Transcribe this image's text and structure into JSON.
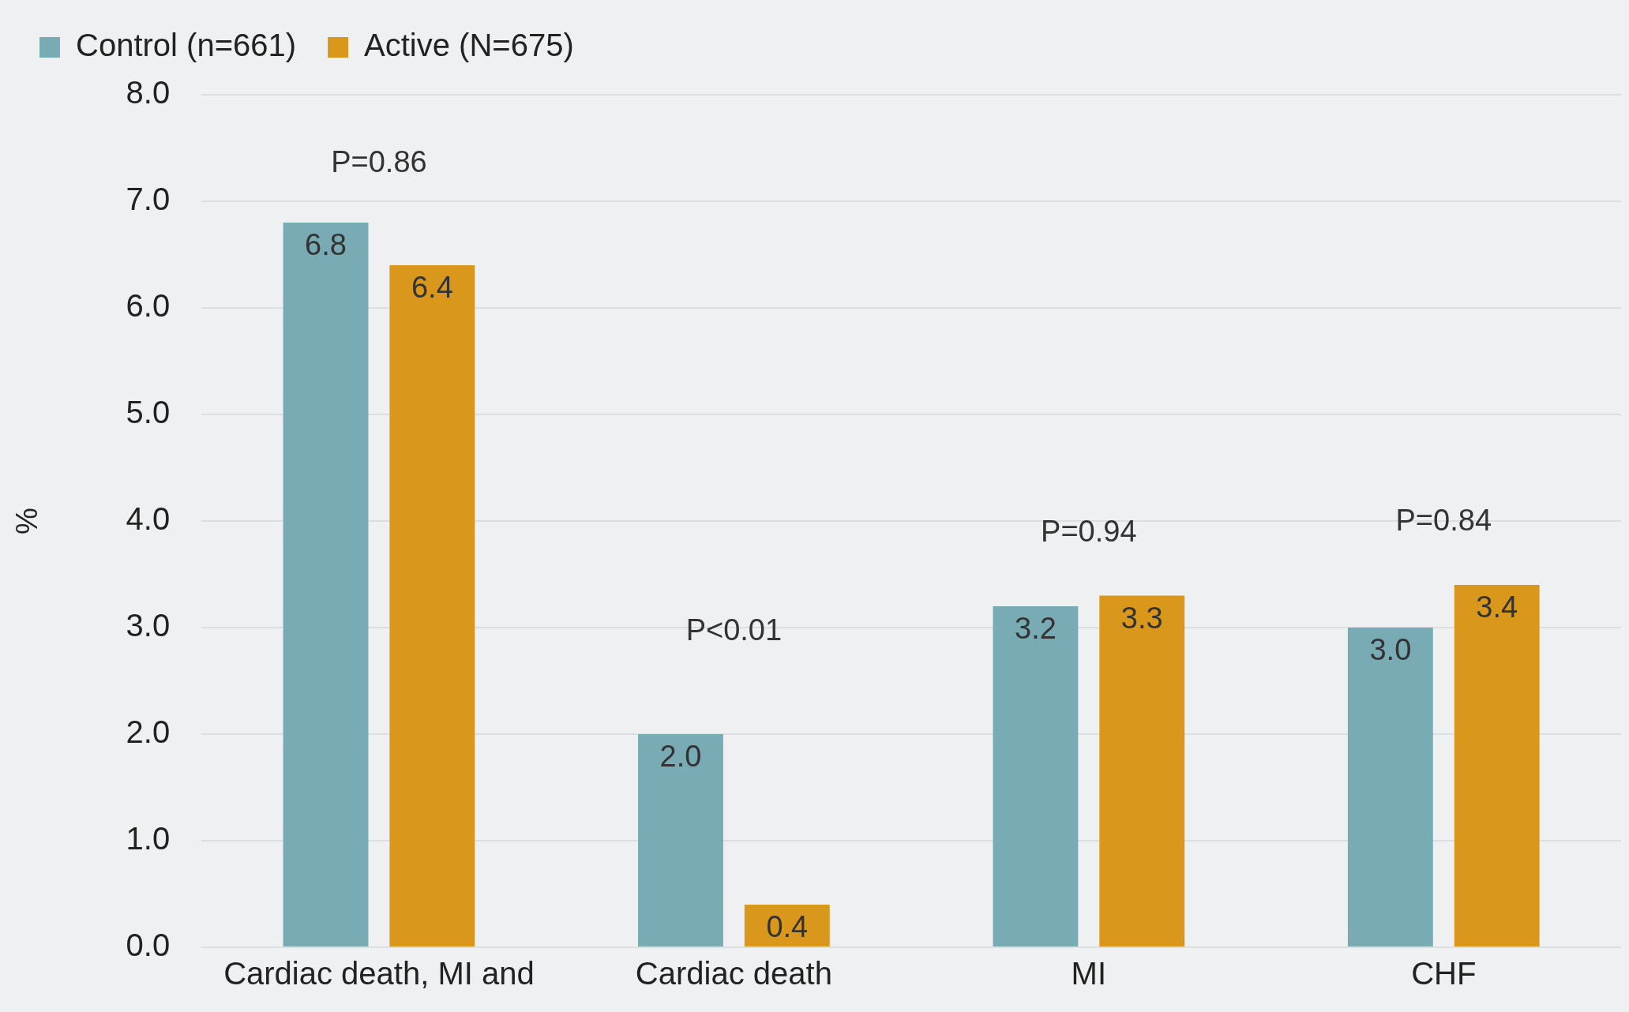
{
  "chart_data": {
    "type": "bar",
    "ylabel": "%",
    "categories": [
      "Cardiac death, MI and",
      "Cardiac death",
      "MI",
      "CHF"
    ],
    "series": [
      {
        "name": "Control (n=661)",
        "color": "#78abb4",
        "values": [
          6.8,
          2.0,
          3.2,
          3.0
        ],
        "value_labels": [
          "6.8",
          "2.0",
          "3.2",
          "3.0"
        ]
      },
      {
        "name": "Active (N=675)",
        "color": "#d9971c",
        "values": [
          6.4,
          0.4,
          3.3,
          3.4
        ],
        "value_labels": [
          "6.4",
          "0.4",
          "3.3",
          "3.4"
        ]
      }
    ],
    "ylim": [
      0,
      8
    ],
    "yticks": [
      {
        "value": 0,
        "label": "0.0"
      },
      {
        "value": 1,
        "label": "1.0"
      },
      {
        "value": 2,
        "label": "2.0"
      },
      {
        "value": 3,
        "label": "3.0"
      },
      {
        "value": 4,
        "label": "4.0"
      },
      {
        "value": 5,
        "label": "5.0"
      },
      {
        "value": 6,
        "label": "6.0"
      },
      {
        "value": 7,
        "label": "7.0"
      },
      {
        "value": 8,
        "label": "8.0"
      }
    ],
    "grid": "y",
    "legend": "top",
    "annotations": [
      "P=0.86",
      "P<0.01",
      "P=0.94",
      "P=0.84"
    ]
  }
}
